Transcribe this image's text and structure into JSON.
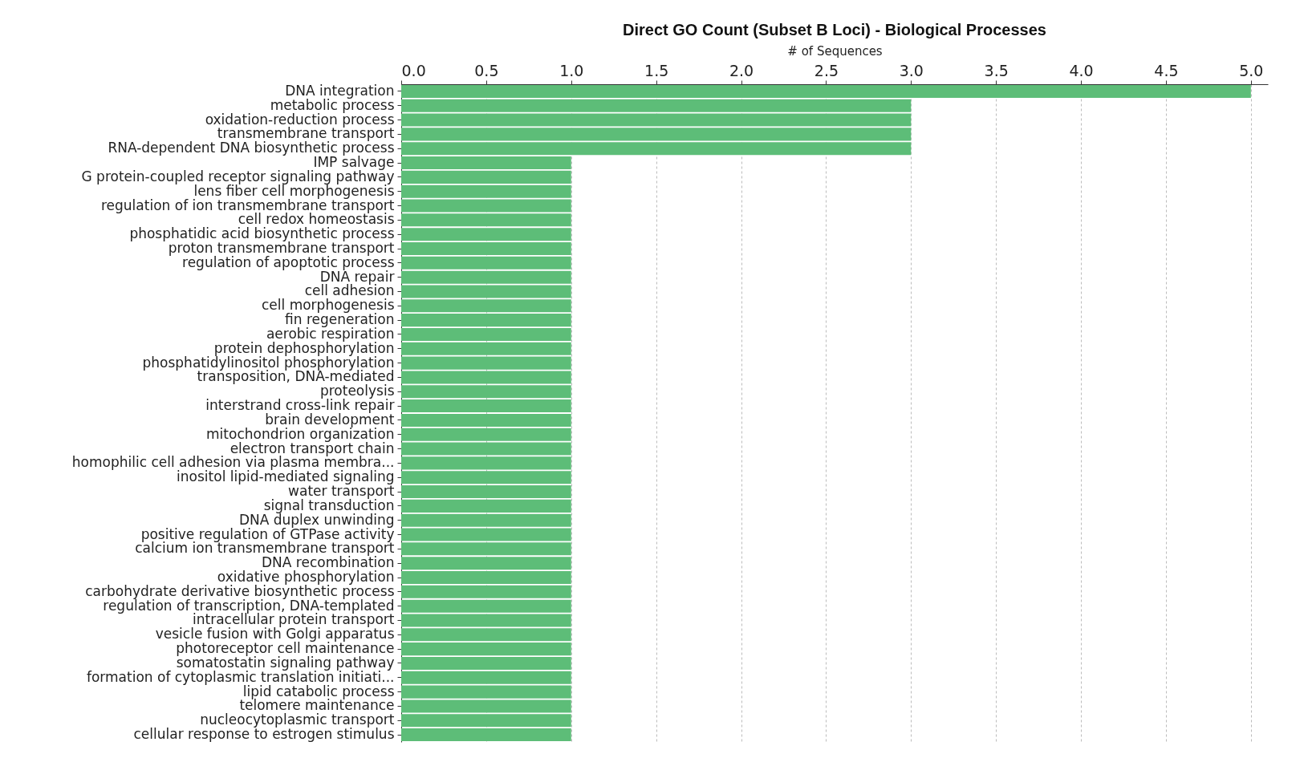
{
  "chart_data": {
    "type": "bar",
    "orientation": "horizontal",
    "title": "Direct GO Count (Subset B Loci) - Biological Processes",
    "xlabel": "# of Sequences",
    "color": "#5dbd78",
    "grid": "x",
    "xlim": [
      0,
      5.1
    ],
    "xticks": [
      {
        "value": 0,
        "label": "0.0"
      },
      {
        "value": 0.5,
        "label": "0.5"
      },
      {
        "value": 1,
        "label": "1.0"
      },
      {
        "value": 1.5,
        "label": "1.5"
      },
      {
        "value": 2,
        "label": "2.0"
      },
      {
        "value": 2.5,
        "label": "2.5"
      },
      {
        "value": 3,
        "label": "3.0"
      },
      {
        "value": 3.5,
        "label": "3.5"
      },
      {
        "value": 4,
        "label": "4.0"
      },
      {
        "value": 4.5,
        "label": "4.5"
      },
      {
        "value": 5,
        "label": "5.0"
      }
    ],
    "categories": [
      "DNA integration",
      "metabolic process",
      "oxidation-reduction process",
      "transmembrane transport",
      "RNA-dependent DNA biosynthetic process",
      "IMP salvage",
      "G protein-coupled receptor signaling pathway",
      "lens fiber cell morphogenesis",
      "regulation of ion transmembrane transport",
      "cell redox homeostasis",
      "phosphatidic acid biosynthetic process",
      "proton transmembrane transport",
      "regulation of apoptotic process",
      "DNA repair",
      "cell adhesion",
      "cell morphogenesis",
      "fin regeneration",
      "aerobic respiration",
      "protein dephosphorylation",
      "phosphatidylinositol phosphorylation",
      "transposition, DNA-mediated",
      "proteolysis",
      "interstrand cross-link repair",
      "brain development",
      "mitochondrion organization",
      "electron transport chain",
      "homophilic cell adhesion via plasma membra...",
      "inositol lipid-mediated signaling",
      "water transport",
      "signal transduction",
      "DNA duplex unwinding",
      "positive regulation of GTPase activity",
      "calcium ion transmembrane transport",
      "DNA recombination",
      "oxidative phosphorylation",
      "carbohydrate derivative biosynthetic process",
      "regulation of transcription, DNA-templated",
      "intracellular protein transport",
      "vesicle fusion with Golgi apparatus",
      "photoreceptor cell maintenance",
      "somatostatin signaling pathway",
      "formation of cytoplasmic translation initiati...",
      "lipid catabolic process",
      "telomere maintenance",
      "nucleocytoplasmic transport",
      "cellular response to estrogen stimulus"
    ],
    "values": [
      5,
      3,
      3,
      3,
      3,
      1,
      1,
      1,
      1,
      1,
      1,
      1,
      1,
      1,
      1,
      1,
      1,
      1,
      1,
      1,
      1,
      1,
      1,
      1,
      1,
      1,
      1,
      1,
      1,
      1,
      1,
      1,
      1,
      1,
      1,
      1,
      1,
      1,
      1,
      1,
      1,
      1,
      1,
      1,
      1,
      1
    ]
  }
}
